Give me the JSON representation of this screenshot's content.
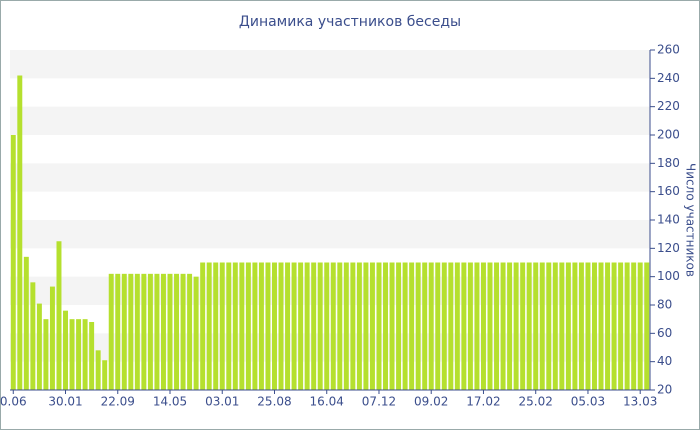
{
  "chart_data": {
    "type": "bar",
    "title": "Динамика участников беседы",
    "y_axis_label": "Число участников",
    "categories": [
      "0.06",
      null,
      null,
      null,
      null,
      null,
      null,
      null,
      "30.01",
      null,
      null,
      null,
      null,
      null,
      null,
      null,
      "22.09",
      null,
      null,
      null,
      null,
      null,
      null,
      null,
      "14.05",
      null,
      null,
      null,
      null,
      null,
      null,
      null,
      "03.01",
      null,
      null,
      null,
      null,
      null,
      null,
      null,
      "25.08",
      null,
      null,
      null,
      null,
      null,
      null,
      null,
      "16.04",
      null,
      null,
      null,
      null,
      null,
      null,
      null,
      "07.12",
      null,
      null,
      null,
      null,
      null,
      null,
      null,
      "09.02",
      null,
      null,
      null,
      null,
      null,
      null,
      null,
      "17.02",
      null,
      null,
      null,
      null,
      null,
      null,
      null,
      "25.02",
      null,
      null,
      null,
      null,
      null,
      null,
      null,
      "05.03",
      null,
      null,
      null,
      null,
      null,
      null,
      null,
      "13.03",
      null
    ],
    "values": [
      200,
      242,
      114,
      96,
      81,
      70,
      93,
      125,
      76,
      70,
      70,
      70,
      68,
      48,
      41,
      102,
      102,
      102,
      102,
      102,
      102,
      102,
      102,
      102,
      102,
      102,
      102,
      102,
      100,
      110,
      110,
      110,
      110,
      110,
      110,
      110,
      110,
      110,
      110,
      110,
      110,
      110,
      110,
      110,
      110,
      110,
      110,
      110,
      110,
      110,
      110,
      110,
      110,
      110,
      110,
      110,
      110,
      110,
      110,
      110,
      110,
      110,
      110,
      110,
      110,
      110,
      110,
      110,
      110,
      110,
      110,
      110,
      110,
      110,
      110,
      110,
      110,
      110,
      110,
      110,
      110,
      110,
      110,
      110,
      110,
      110,
      110,
      110,
      110,
      110,
      110,
      110,
      110,
      110,
      110,
      110,
      110,
      110
    ],
    "color": "#b5e02e",
    "ylim": [
      20,
      260
    ],
    "yticks": [
      20,
      40,
      60,
      80,
      100,
      120,
      140,
      160,
      180,
      200,
      220,
      240,
      260
    ],
    "grid": true,
    "y_axis_side": "right"
  }
}
